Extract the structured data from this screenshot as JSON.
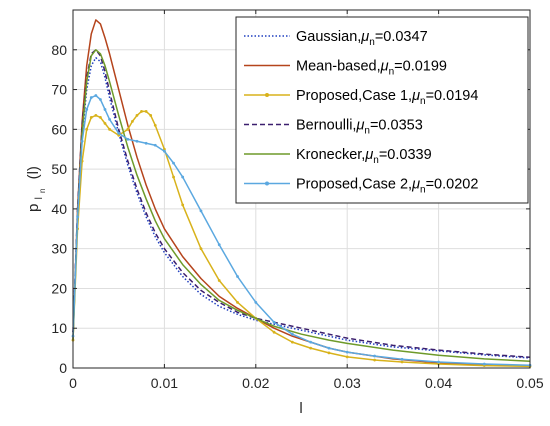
{
  "chart_data": {
    "type": "line",
    "xlabel": "l",
    "ylabel": "p",
    "ylabel_sub": "l",
    "ylabel_sub2": "n",
    "ylabel_arg": "(l)",
    "xlim": [
      0,
      0.05
    ],
    "ylim": [
      0,
      90
    ],
    "xticks": [
      0,
      0.01,
      0.02,
      0.03,
      0.04,
      0.05
    ],
    "xtick_labels": [
      "0",
      "0.01",
      "0.02",
      "0.03",
      "0.04",
      "0.05"
    ],
    "yticks": [
      0,
      10,
      20,
      30,
      40,
      50,
      60,
      70,
      80
    ],
    "ytick_labels": [
      "0",
      "10",
      "20",
      "30",
      "40",
      "50",
      "60",
      "70",
      "80"
    ],
    "grid": true,
    "legend_position": "top-right",
    "mu_symbol": "μ",
    "mu_sub": "n",
    "series": [
      {
        "label": "Gaussian,",
        "mu_value": "=0.0347",
        "color": "#1f3fbf",
        "style": "dotted",
        "x": [
          0,
          0.0005,
          0.001,
          0.0015,
          0.002,
          0.0025,
          0.003,
          0.0035,
          0.004,
          0.005,
          0.006,
          0.007,
          0.008,
          0.009,
          0.01,
          0.012,
          0.014,
          0.016,
          0.018,
          0.02,
          0.022,
          0.025,
          0.028,
          0.03,
          0.035,
          0.04,
          0.045,
          0.05
        ],
        "y": [
          9,
          38,
          58,
          70,
          76,
          78,
          77,
          73,
          68,
          59,
          51,
          44,
          38,
          33,
          29,
          23,
          18.5,
          15.5,
          13.5,
          12,
          11,
          9.5,
          8,
          7,
          5.3,
          4.3,
          3.3,
          2.5
        ]
      },
      {
        "label": "Mean-based,",
        "mu_value": "=0.0199",
        "color": "#b5441c",
        "style": "solid",
        "x": [
          0,
          0.0005,
          0.001,
          0.0015,
          0.002,
          0.0025,
          0.003,
          0.0035,
          0.004,
          0.005,
          0.006,
          0.007,
          0.008,
          0.009,
          0.01,
          0.012,
          0.014,
          0.016,
          0.018,
          0.02,
          0.022,
          0.024,
          0.026,
          0.028,
          0.03,
          0.035,
          0.04,
          0.045,
          0.05
        ],
        "y": [
          7,
          40,
          62,
          76,
          84,
          87.5,
          86.5,
          83,
          79,
          70,
          61,
          53,
          46,
          40,
          35,
          28,
          22.5,
          18,
          15,
          12.5,
          10,
          8,
          6.5,
          5,
          4,
          2.3,
          1.3,
          0.8,
          0.5
        ]
      },
      {
        "label": "Proposed,Case 1,",
        "mu_value": "=0.0194",
        "color": "#d8b21b",
        "style": "solid-dots",
        "x": [
          0,
          0.0005,
          0.001,
          0.0015,
          0.002,
          0.0025,
          0.003,
          0.0035,
          0.004,
          0.005,
          0.006,
          0.0065,
          0.007,
          0.0075,
          0.008,
          0.0085,
          0.009,
          0.01,
          0.011,
          0.012,
          0.014,
          0.016,
          0.018,
          0.02,
          0.022,
          0.024,
          0.026,
          0.028,
          0.03,
          0.033,
          0.036,
          0.04,
          0.045,
          0.05
        ],
        "y": [
          7,
          35,
          52,
          60,
          63,
          63.5,
          63,
          61.5,
          60,
          58.5,
          60,
          62,
          63.5,
          64.5,
          64.5,
          63.5,
          61,
          55,
          48,
          41,
          30,
          22,
          16.5,
          12.5,
          9,
          6.5,
          5,
          3.8,
          2.8,
          2,
          1.5,
          1,
          0.6,
          0.4
        ]
      },
      {
        "label": "Bernoulli,",
        "mu_value": "=0.0353",
        "color": "#3b1f6e",
        "style": "dashed",
        "x": [
          0,
          0.0005,
          0.001,
          0.0015,
          0.002,
          0.0025,
          0.003,
          0.0035,
          0.004,
          0.005,
          0.006,
          0.007,
          0.008,
          0.009,
          0.01,
          0.012,
          0.014,
          0.016,
          0.018,
          0.02,
          0.022,
          0.025,
          0.028,
          0.03,
          0.035,
          0.04,
          0.045,
          0.05
        ],
        "y": [
          9,
          40,
          61,
          73,
          79,
          80,
          78.5,
          74.5,
          69.5,
          60,
          52,
          45,
          39,
          34,
          30,
          24,
          19.5,
          16.5,
          14,
          12.5,
          11.5,
          10,
          8.5,
          7.5,
          5.7,
          4.5,
          3.5,
          2.7
        ]
      },
      {
        "label": "Kronecker,",
        "mu_value": "=0.0339",
        "color": "#6e9a2a",
        "style": "solid",
        "x": [
          0,
          0.0005,
          0.001,
          0.0015,
          0.002,
          0.0025,
          0.003,
          0.0035,
          0.004,
          0.005,
          0.006,
          0.007,
          0.008,
          0.009,
          0.01,
          0.012,
          0.014,
          0.016,
          0.018,
          0.02,
          0.022,
          0.025,
          0.028,
          0.03,
          0.035,
          0.04,
          0.045,
          0.05
        ],
        "y": [
          7,
          38,
          59,
          72,
          78.5,
          80,
          79,
          76,
          72,
          63.5,
          55.5,
          48.5,
          42.5,
          37,
          32.5,
          26,
          21,
          17,
          14.5,
          12.5,
          10.5,
          8.5,
          7,
          6.2,
          4.5,
          3.2,
          2.3,
          1.7
        ]
      },
      {
        "label": "Proposed,Case 2,",
        "mu_value": "=0.0202",
        "color": "#5ba8e0",
        "style": "solid-dots",
        "x": [
          0,
          0.0005,
          0.001,
          0.0015,
          0.002,
          0.0025,
          0.003,
          0.0035,
          0.004,
          0.005,
          0.006,
          0.007,
          0.008,
          0.009,
          0.01,
          0.011,
          0.012,
          0.014,
          0.016,
          0.018,
          0.02,
          0.022,
          0.024,
          0.026,
          0.028,
          0.03,
          0.033,
          0.036,
          0.04,
          0.045,
          0.05
        ],
        "y": [
          8,
          38,
          57,
          65,
          68,
          68.5,
          67.5,
          65,
          62.5,
          59,
          57.5,
          57,
          56.5,
          56,
          54.5,
          51.5,
          48,
          39.5,
          31,
          23,
          16.5,
          11.5,
          8.5,
          6.5,
          5,
          4,
          3,
          2.2,
          1.5,
          1,
          0.7
        ]
      }
    ]
  }
}
